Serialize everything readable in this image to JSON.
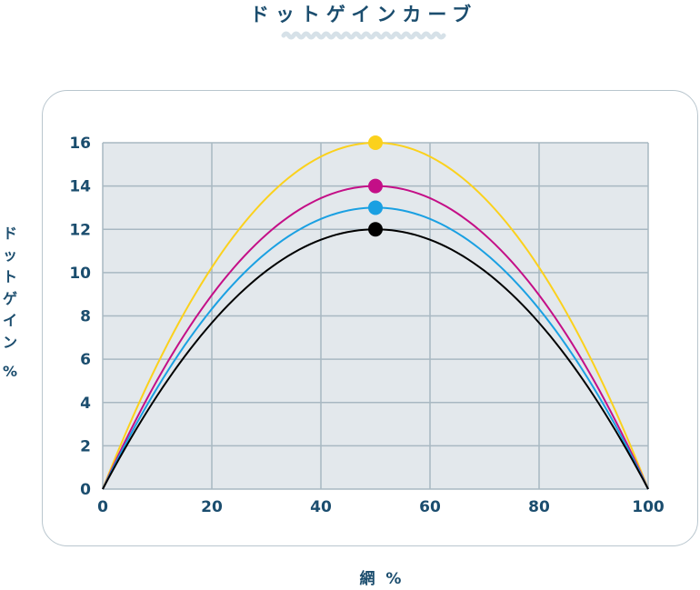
{
  "header": {
    "title": "ドットゲインカーブ"
  },
  "chart_data": {
    "type": "line",
    "title": "ドットゲインカーブ",
    "xlabel": "網 %",
    "ylabel": "ドットゲイン %",
    "xlim": [
      0,
      100
    ],
    "ylim": [
      0,
      16
    ],
    "x_ticks": [
      "0",
      "20",
      "40",
      "60",
      "80",
      "100"
    ],
    "y_ticks": [
      "0",
      "2",
      "4",
      "6",
      "8",
      "10",
      "12",
      "14",
      "16"
    ],
    "grid": true,
    "series": [
      {
        "color": "#fbd11c",
        "peak_x": 50,
        "peak_y": 16,
        "x": [
          0,
          10,
          20,
          30,
          40,
          50,
          60,
          70,
          80,
          90,
          100
        ],
        "y": [
          0,
          5.8,
          10.2,
          13.4,
          15.4,
          16,
          15.4,
          13.4,
          10.2,
          5.8,
          0
        ]
      },
      {
        "color": "#c40f87",
        "peak_x": 50,
        "peak_y": 14,
        "x": [
          0,
          10,
          20,
          30,
          40,
          50,
          60,
          70,
          80,
          90,
          100
        ],
        "y": [
          0,
          5.0,
          9.0,
          11.8,
          13.4,
          14,
          13.4,
          11.8,
          9.0,
          5.0,
          0
        ]
      },
      {
        "color": "#1aa0e2",
        "peak_x": 50,
        "peak_y": 13,
        "x": [
          0,
          10,
          20,
          30,
          40,
          50,
          60,
          70,
          80,
          90,
          100
        ],
        "y": [
          0,
          4.7,
          8.3,
          10.9,
          12.5,
          13,
          12.5,
          10.9,
          8.3,
          4.7,
          0
        ]
      },
      {
        "color": "#000000",
        "peak_x": 50,
        "peak_y": 12,
        "x": [
          0,
          10,
          20,
          30,
          40,
          50,
          60,
          70,
          80,
          90,
          100
        ],
        "y": [
          0,
          4.3,
          7.7,
          10.1,
          11.5,
          12,
          11.5,
          10.1,
          7.7,
          4.3,
          0
        ]
      }
    ]
  },
  "colors": {
    "text": "#1b4d6e",
    "plot_bg": "#e3e8ec",
    "grid": "#a8b8c2",
    "card_border": "#b9c6ce",
    "wave": "#d6e1e8"
  }
}
